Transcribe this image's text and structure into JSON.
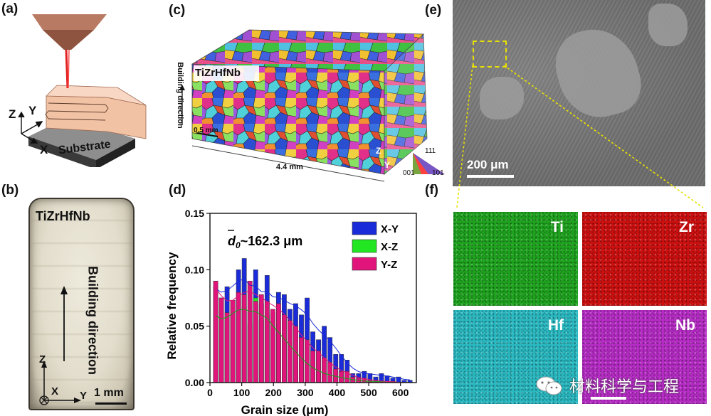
{
  "panel_labels": {
    "a": "(a)",
    "b": "(b)",
    "c": "(c)",
    "d": "(d)",
    "e": "(e)",
    "f": "(f)"
  },
  "panel_a": {
    "axis_z": "Z",
    "axis_y": "Y",
    "axis_x": "X",
    "substrate_label": "Substrate",
    "colors": {
      "nozzle": "#b97a64",
      "beam": "#e02020",
      "deposit": "#f2c2a6",
      "substrate": "#9a9a9a"
    }
  },
  "panel_b": {
    "alloy_label": "TiZrHfNb",
    "direction_label": "Building direction",
    "axis_z": "Z",
    "axis_x": "X",
    "axis_y": "Y",
    "scale_label": "1 mm"
  },
  "panel_c": {
    "alloy_label": "TiZrHfNb",
    "direction_label": "Building direction",
    "scale_small": "0.5 mm",
    "length_label": "4.4 mm",
    "ipf_labels": {
      "top": "111",
      "left": "001",
      "right": "101"
    },
    "axis_z": "Z",
    "axis_y": "Y"
  },
  "panel_e": {
    "scale_label": "200 μm",
    "highlight_color": "#e8e000"
  },
  "panel_f": {
    "maps": [
      {
        "element": "Ti",
        "color": "#1fa31f"
      },
      {
        "element": "Zr",
        "color": "#cc1010"
      },
      {
        "element": "Hf",
        "color": "#2ab8c0"
      },
      {
        "element": "Nb",
        "color": "#b52cc4"
      }
    ],
    "watermark": "材料科学与工程"
  },
  "chart_data": {
    "type": "bar",
    "xlabel": "Grain size (μm)",
    "ylabel": "Relative frequency",
    "annotation": "d₀~162.3 μm",
    "annotation_symbol": "d",
    "annotation_subscript": "0",
    "annotation_value": "~162.3 μm",
    "xlim": [
      0,
      650
    ],
    "ylim": [
      0,
      0.15
    ],
    "xticks": [
      0,
      100,
      200,
      300,
      400,
      500,
      600
    ],
    "yticks": [
      "0.00",
      "0.05",
      "0.10",
      "0.15"
    ],
    "bin_width": 18,
    "legend_position": "top-right",
    "x": [
      18,
      36,
      54,
      72,
      90,
      108,
      126,
      144,
      162,
      180,
      198,
      216,
      234,
      252,
      270,
      288,
      306,
      324,
      342,
      360,
      378,
      396,
      414,
      432,
      450,
      468,
      486,
      504,
      522,
      540,
      558,
      576,
      594,
      612,
      630
    ],
    "series": [
      {
        "name": "X-Y",
        "color": "#1a2bd9",
        "values": [
          0.085,
          0.075,
          0.085,
          0.072,
          0.1,
          0.11,
          0.062,
          0.1,
          0.07,
          0.095,
          0.062,
          0.08,
          0.078,
          0.065,
          0.07,
          0.06,
          0.075,
          0.045,
          0.038,
          0.05,
          0.04,
          0.025,
          0.025,
          0.02,
          0.008,
          0.008,
          0.01,
          0.008,
          0.005,
          0.008,
          0.006,
          0.004,
          0.005,
          0.002,
          0.002
        ]
      },
      {
        "name": "X-Z",
        "color": "#22e622",
        "values": [
          0.063,
          0.05,
          0.055,
          0.06,
          0.073,
          0.067,
          0.052,
          0.075,
          0.055,
          0.06,
          0.052,
          0.044,
          0.035,
          0.036,
          0.028,
          0.018,
          0.018,
          0.012,
          0.01,
          0.008,
          0.006,
          0.006,
          0.004,
          0.004,
          0.002,
          0.002,
          0.001,
          0.001,
          0.001,
          0.001,
          0.001,
          0.001,
          0.0,
          0.0,
          0.0
        ]
      },
      {
        "name": "Y-Z",
        "color": "#e0147a",
        "values": [
          0.09,
          0.075,
          0.062,
          0.073,
          0.08,
          0.078,
          0.09,
          0.072,
          0.078,
          0.072,
          0.065,
          0.07,
          0.06,
          0.055,
          0.05,
          0.04,
          0.038,
          0.028,
          0.028,
          0.022,
          0.018,
          0.012,
          0.01,
          0.01,
          0.005,
          0.004,
          0.004,
          0.002,
          0.002,
          0.001,
          0.001,
          0.001,
          0.0,
          0.0,
          0.0
        ]
      }
    ]
  }
}
